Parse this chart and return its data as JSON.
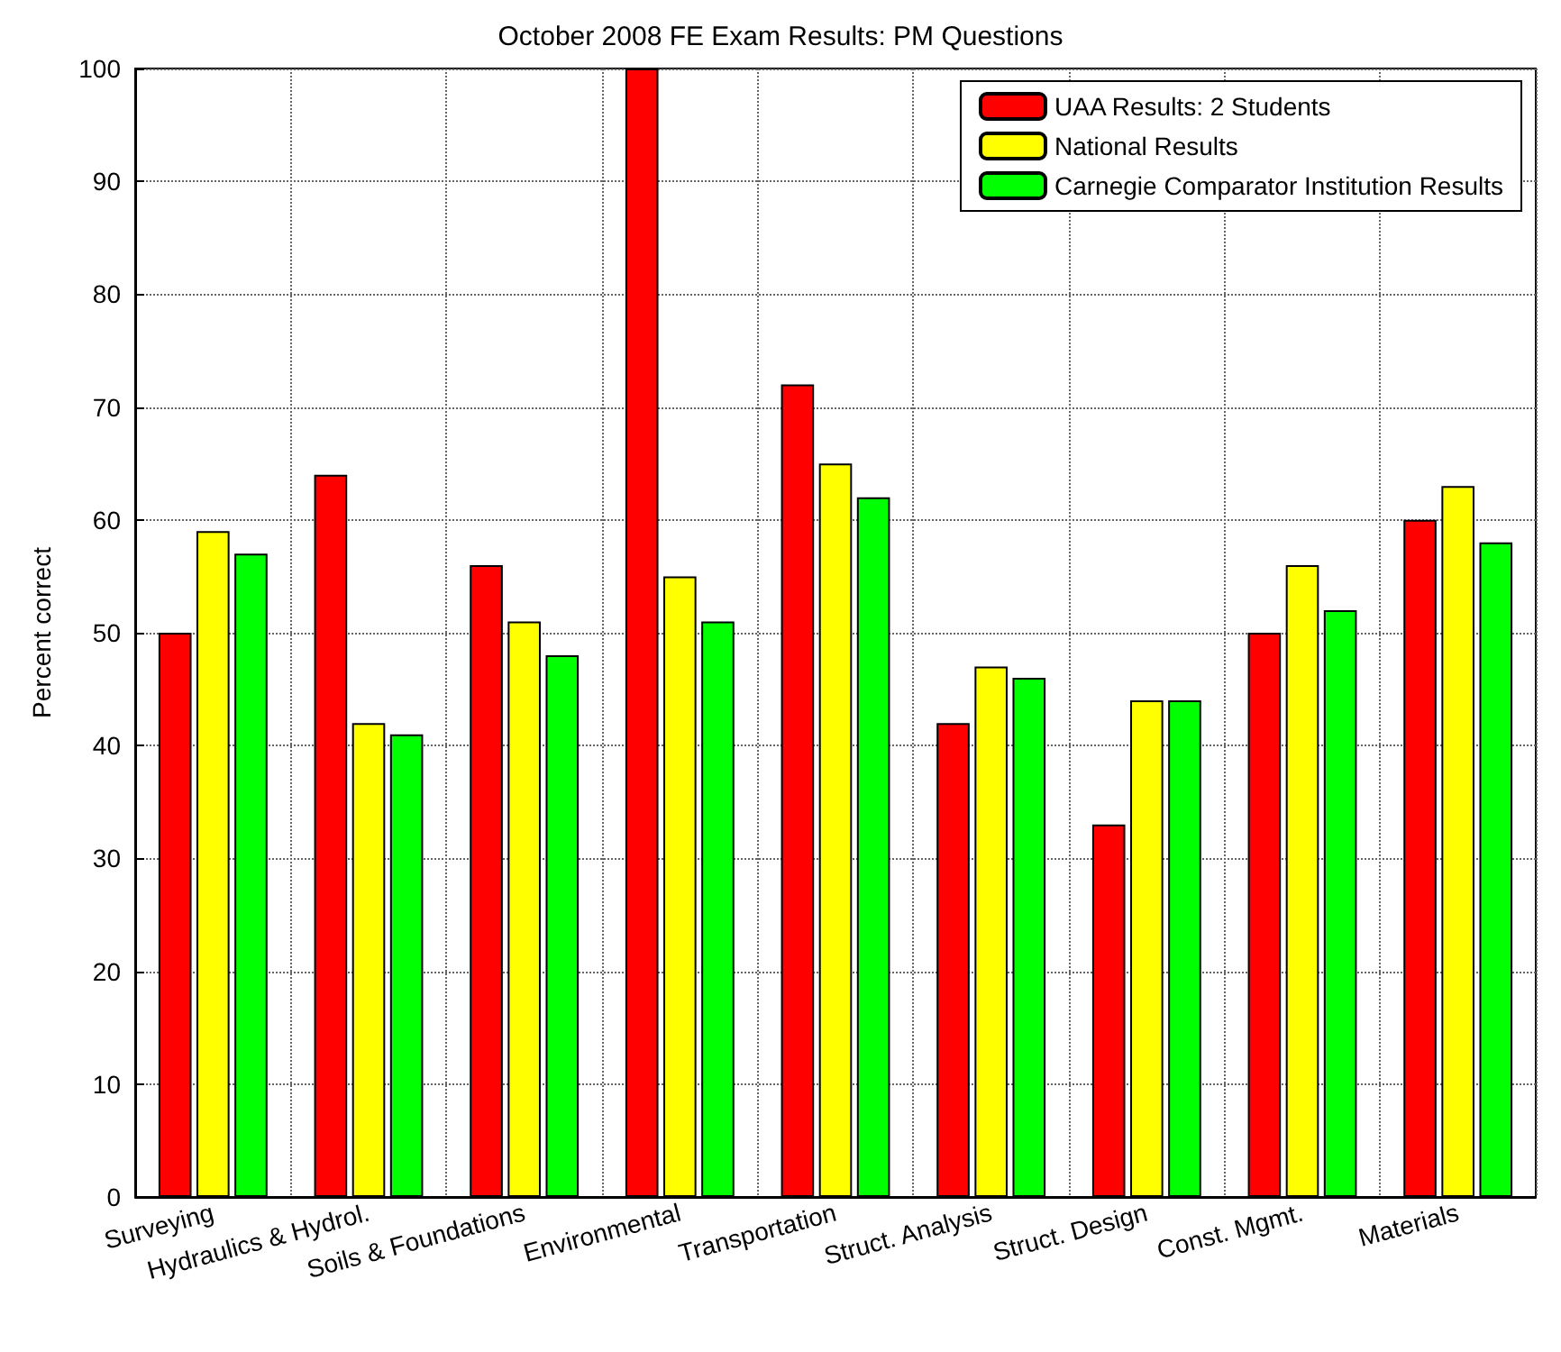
{
  "chart_data": {
    "type": "bar",
    "title": "October 2008 FE Exam Results: PM Questions",
    "ylabel": "Percent correct",
    "categories": [
      "Surveying",
      "Hydraulics & Hydrol.",
      "Soils & Foundations",
      "Environmental",
      "Transportation",
      "Struct. Analysis",
      "Struct. Design",
      "Const. Mgmt.",
      "Materials"
    ],
    "series": [
      {
        "name": "UAA Results: 2 Students",
        "color": "#ff0000",
        "values": [
          50,
          64,
          56,
          100,
          72,
          42,
          33,
          50,
          60
        ]
      },
      {
        "name": "National Results",
        "color": "#ffff00",
        "values": [
          59,
          42,
          51,
          55,
          65,
          47,
          44,
          56,
          63
        ]
      },
      {
        "name": "Carnegie Comparator Institution Results",
        "color": "#00ff00",
        "values": [
          57,
          41,
          48,
          51,
          62,
          46,
          44,
          52,
          58
        ]
      }
    ],
    "ylim": [
      0,
      100
    ],
    "yticks": [
      0,
      10,
      20,
      30,
      40,
      50,
      60,
      70,
      80,
      90,
      100
    ],
    "grid": true,
    "legend": "top right"
  }
}
